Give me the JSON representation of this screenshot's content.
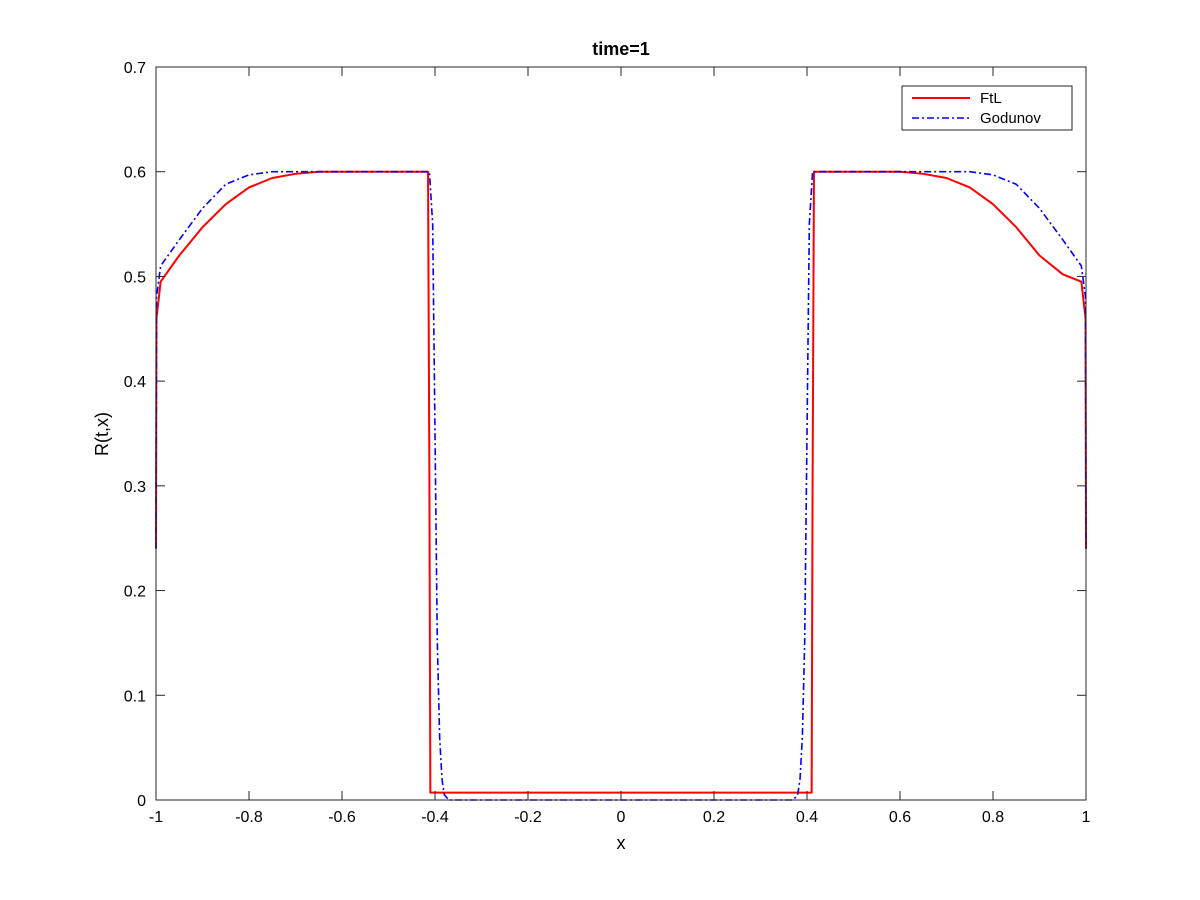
{
  "chart_data": {
    "type": "line",
    "title": "time=1",
    "xlabel": "x",
    "ylabel": "R(t,x)",
    "xlim": [
      -1,
      1
    ],
    "ylim": [
      0,
      0.7
    ],
    "xticks": [
      -1,
      -0.8,
      -0.6,
      -0.4,
      -0.2,
      0,
      0.2,
      0.4,
      0.6,
      0.8,
      1
    ],
    "xtick_labels": [
      "-1",
      "-0.8",
      "-0.6",
      "-0.4",
      "-0.2",
      "0",
      "0.2",
      "0.4",
      "0.6",
      "0.8",
      "1"
    ],
    "yticks": [
      0,
      0.1,
      0.2,
      0.3,
      0.4,
      0.5,
      0.6,
      0.7
    ],
    "ytick_labels": [
      "0",
      "0.1",
      "0.2",
      "0.3",
      "0.4",
      "0.5",
      "0.6",
      "0.7"
    ],
    "grid": false,
    "legend_position": "top-right",
    "series": [
      {
        "name": "FtL",
        "color": "#ff0000",
        "style": "solid",
        "x": [
          -1.0,
          -0.999,
          -0.99,
          -0.95,
          -0.9,
          -0.85,
          -0.8,
          -0.75,
          -0.7,
          -0.65,
          -0.6,
          -0.55,
          -0.5,
          -0.45,
          -0.415,
          -0.412,
          -0.41,
          0.41,
          0.412,
          0.415,
          0.45,
          0.5,
          0.55,
          0.6,
          0.65,
          0.7,
          0.75,
          0.8,
          0.85,
          0.9,
          0.95,
          0.99,
          0.999,
          1.0
        ],
        "y": [
          0.24,
          0.46,
          0.495,
          0.52,
          0.547,
          0.569,
          0.585,
          0.594,
          0.598,
          0.6,
          0.6,
          0.6,
          0.6,
          0.6,
          0.6,
          0.3,
          0.007,
          0.007,
          0.3,
          0.6,
          0.6,
          0.6,
          0.6,
          0.6,
          0.598,
          0.594,
          0.585,
          0.569,
          0.547,
          0.52,
          0.502,
          0.495,
          0.46,
          0.24
        ]
      },
      {
        "name": "Godunov",
        "color": "#0000ff",
        "style": "dashdot",
        "x": [
          -1.0,
          -0.999,
          -0.99,
          -0.95,
          -0.9,
          -0.85,
          -0.8,
          -0.75,
          -0.7,
          -0.65,
          -0.6,
          -0.55,
          -0.5,
          -0.45,
          -0.412,
          -0.405,
          -0.4,
          -0.395,
          -0.39,
          -0.385,
          -0.38,
          -0.37,
          0.37,
          0.38,
          0.385,
          0.39,
          0.395,
          0.4,
          0.405,
          0.412,
          0.45,
          0.5,
          0.55,
          0.6,
          0.65,
          0.7,
          0.75,
          0.8,
          0.85,
          0.9,
          0.95,
          0.99,
          0.999,
          1.0
        ],
        "y": [
          0.24,
          0.48,
          0.51,
          0.535,
          0.565,
          0.588,
          0.597,
          0.6,
          0.6,
          0.6,
          0.6,
          0.6,
          0.6,
          0.6,
          0.6,
          0.55,
          0.35,
          0.15,
          0.06,
          0.02,
          0.005,
          0.0,
          0.0,
          0.005,
          0.02,
          0.06,
          0.15,
          0.35,
          0.55,
          0.6,
          0.6,
          0.6,
          0.6,
          0.6,
          0.6,
          0.6,
          0.6,
          0.597,
          0.588,
          0.565,
          0.535,
          0.51,
          0.48,
          0.24
        ]
      }
    ]
  }
}
